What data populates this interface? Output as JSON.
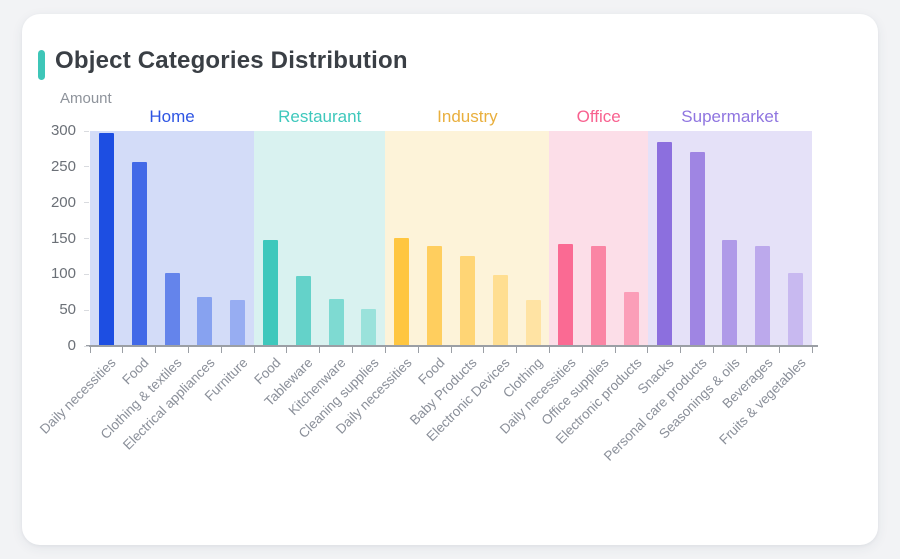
{
  "page": {
    "title": "Object Categories Distribution",
    "accent_color": "#3EC6B8",
    "ylabel": "Amount"
  },
  "chart_data": {
    "type": "bar",
    "title": "Object Categories Distribution",
    "ylabel": "Amount",
    "ylim": [
      0,
      300
    ],
    "yticks": [
      0,
      50,
      100,
      150,
      200,
      250,
      300
    ],
    "grid": false,
    "legend_position": "top-inline",
    "groups": [
      {
        "name": "Home",
        "label_color": "#2E55E3",
        "panel_color": "#D3DCF8",
        "categories": [
          "Daily necessities",
          "Food",
          "Clothing & textiles",
          "Electrical appliances",
          "Furniture"
        ],
        "values": [
          297,
          257,
          102,
          69,
          64
        ],
        "bar_colors": [
          "#1D4EE2",
          "#4269E7",
          "#6484EB",
          "#87A2F0",
          "#97ADF2"
        ]
      },
      {
        "name": "Restaurant",
        "label_color": "#3EC8BC",
        "panel_color": "#D9F2F0",
        "categories": [
          "Food",
          "Tableware",
          "Kitchenware",
          "Cleaning supplies"
        ],
        "values": [
          148,
          97,
          66,
          51
        ],
        "bar_colors": [
          "#3EC8BC",
          "#64D2C9",
          "#7EDAD2",
          "#9AE2DB"
        ]
      },
      {
        "name": "Industry",
        "label_color": "#E9AF3D",
        "panel_color": "#FDF3D9",
        "categories": [
          "Daily necessities",
          "Food",
          "Baby Products",
          "Electronic Devices",
          "Clothing"
        ],
        "values": [
          151,
          139,
          126,
          99,
          64
        ],
        "bar_colors": [
          "#FFC640",
          "#FFCE5E",
          "#FFD575",
          "#FFDE91",
          "#FFE3A3"
        ]
      },
      {
        "name": "Office",
        "label_color": "#F8618F",
        "panel_color": "#FCDEE8",
        "categories": [
          "Daily necessities",
          "Office supplies",
          "Electronic products"
        ],
        "values": [
          143,
          139,
          75
        ],
        "bar_colors": [
          "#FA6A93",
          "#FA85A4",
          "#FB9EB8"
        ]
      },
      {
        "name": "Supermarket",
        "label_color": "#8F75E0",
        "panel_color": "#E5E1F8",
        "categories": [
          "Snacks",
          "Personal care products",
          "Seasonings & oils",
          "Beverages",
          "Fruits & vegetables"
        ],
        "values": [
          284,
          271,
          148,
          140,
          102
        ],
        "bar_colors": [
          "#8C6FDE",
          "#9F85E3",
          "#AF9AE8",
          "#BCA9EC",
          "#C8B9F0"
        ]
      }
    ]
  }
}
